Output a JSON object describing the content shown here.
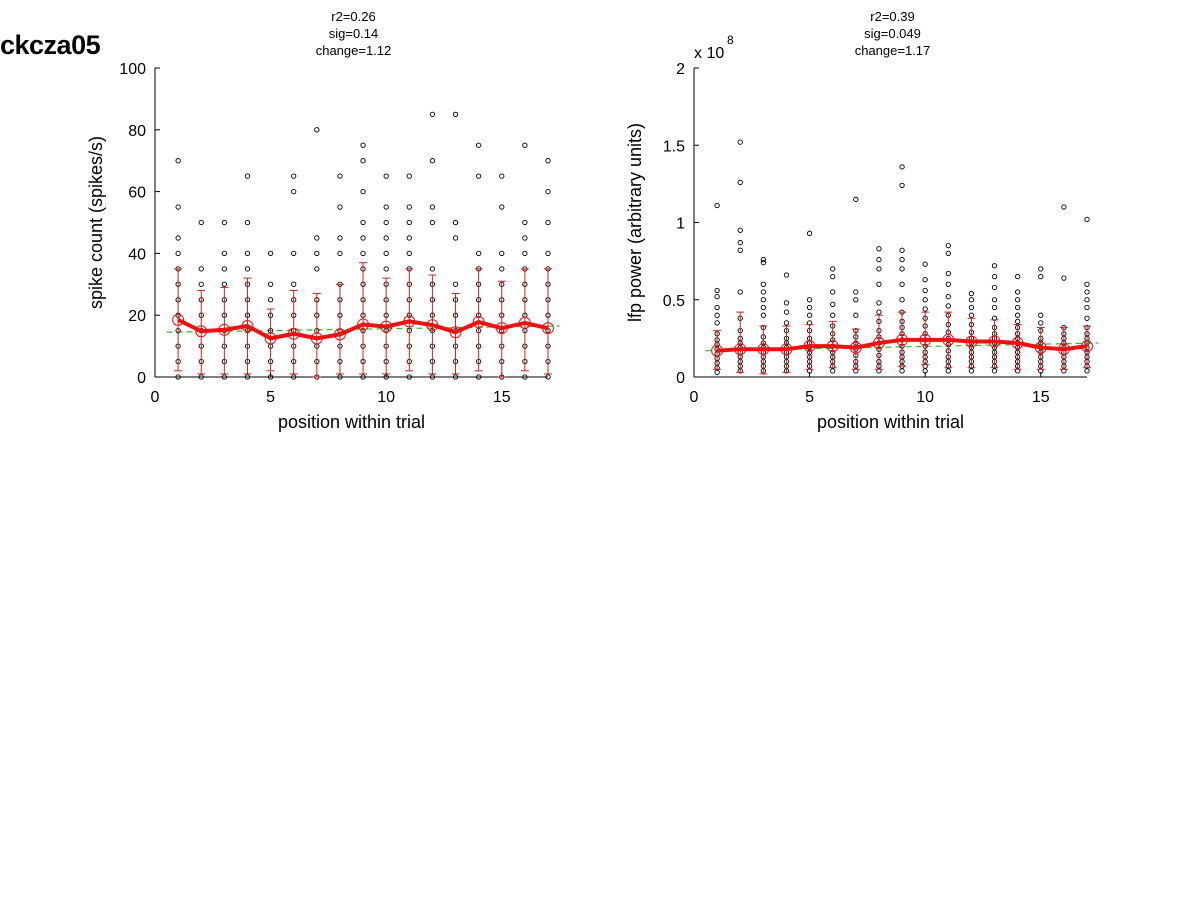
{
  "page_title": "ckcza05",
  "chart_data": [
    {
      "type": "scatter",
      "title_lines": [
        "r2=0.26",
        "sig=0.14",
        "change=1.12"
      ],
      "xlabel": "position within trial",
      "ylabel": "spike count (spikes/s)",
      "xlim": [
        0,
        17
      ],
      "ylim": [
        0,
        100
      ],
      "xticks": [
        0,
        5,
        10,
        15
      ],
      "yticks": [
        0,
        20,
        40,
        60,
        80,
        100
      ],
      "xtick_labels": [
        "0",
        "5",
        "10",
        "15"
      ],
      "ytick_labels": [
        "0",
        "20",
        "40",
        "60",
        "80",
        "100"
      ],
      "exponent_label": "",
      "grid": false,
      "colors": {
        "mean": "#ee1111",
        "points": "#000000",
        "errorbar": "#cc2222",
        "fit": "#33bb33"
      },
      "points": [
        {
          "x": 1,
          "y": [
            0,
            5,
            10,
            15,
            20,
            25,
            30,
            35,
            40,
            45,
            55,
            70
          ]
        },
        {
          "x": 2,
          "y": [
            0,
            5,
            10,
            15,
            20,
            25,
            30,
            35,
            50
          ]
        },
        {
          "x": 3,
          "y": [
            0,
            5,
            10,
            15,
            20,
            25,
            30,
            35,
            40,
            50
          ]
        },
        {
          "x": 4,
          "y": [
            0,
            5,
            10,
            15,
            20,
            25,
            30,
            35,
            40,
            50,
            65
          ]
        },
        {
          "x": 5,
          "y": [
            0,
            5,
            10,
            15,
            20,
            25,
            30,
            40
          ]
        },
        {
          "x": 6,
          "y": [
            0,
            5,
            10,
            15,
            20,
            25,
            30,
            40,
            60,
            65
          ]
        },
        {
          "x": 7,
          "y": [
            0,
            5,
            10,
            15,
            20,
            25,
            35,
            40,
            45,
            80
          ]
        },
        {
          "x": 8,
          "y": [
            0,
            5,
            10,
            15,
            20,
            25,
            30,
            40,
            45,
            55,
            65
          ]
        },
        {
          "x": 9,
          "y": [
            0,
            5,
            10,
            15,
            20,
            25,
            30,
            35,
            40,
            45,
            50,
            60,
            70,
            75
          ]
        },
        {
          "x": 10,
          "y": [
            0,
            5,
            10,
            15,
            20,
            25,
            30,
            35,
            40,
            45,
            50,
            55,
            65
          ]
        },
        {
          "x": 11,
          "y": [
            0,
            5,
            10,
            15,
            20,
            25,
            30,
            35,
            40,
            45,
            50,
            55,
            65
          ]
        },
        {
          "x": 12,
          "y": [
            0,
            5,
            10,
            15,
            20,
            25,
            30,
            35,
            50,
            55,
            70,
            85
          ]
        },
        {
          "x": 13,
          "y": [
            0,
            5,
            10,
            15,
            20,
            25,
            30,
            45,
            50,
            85
          ]
        },
        {
          "x": 14,
          "y": [
            0,
            5,
            10,
            15,
            20,
            25,
            30,
            35,
            40,
            65,
            75
          ]
        },
        {
          "x": 15,
          "y": [
            0,
            5,
            10,
            15,
            20,
            25,
            30,
            35,
            40,
            55,
            65
          ]
        },
        {
          "x": 16,
          "y": [
            0,
            5,
            10,
            15,
            20,
            25,
            30,
            35,
            40,
            45,
            50,
            75
          ]
        },
        {
          "x": 17,
          "y": [
            0,
            5,
            10,
            15,
            20,
            25,
            30,
            35,
            40,
            50,
            60,
            70
          ]
        }
      ],
      "mean": {
        "x": [
          1,
          2,
          3,
          4,
          5,
          6,
          7,
          8,
          9,
          10,
          11,
          12,
          13,
          14,
          15,
          16,
          17
        ],
        "y": [
          18.5,
          14.8,
          15.3,
          16.5,
          12.5,
          14.0,
          12.5,
          13.8,
          17.0,
          16.3,
          18.0,
          16.8,
          14.5,
          17.8,
          15.8,
          17.5,
          15.8
        ]
      },
      "errorbars": {
        "lower": [
          2,
          1,
          1,
          1,
          2,
          1,
          0,
          1,
          1,
          1,
          2,
          1,
          1,
          2,
          0,
          2,
          1
        ],
        "upper": [
          35,
          28,
          29,
          32,
          22,
          28,
          27,
          30,
          37,
          32,
          35,
          33,
          27,
          35,
          31,
          35,
          35
        ]
      },
      "fit": {
        "x": [
          0.5,
          17.5
        ],
        "y": [
          14.5,
          16.5
        ]
      }
    },
    {
      "type": "scatter",
      "title_lines": [
        "r2=0.39",
        "sig=0.049",
        "change=1.17"
      ],
      "xlabel": "position within trial",
      "ylabel": "lfp power (arbitrary units)",
      "xlim": [
        0,
        17
      ],
      "ylim": [
        0,
        2
      ],
      "xticks": [
        0,
        5,
        10,
        15
      ],
      "yticks": [
        0,
        0.5,
        1,
        1.5,
        2
      ],
      "xtick_labels": [
        "0",
        "5",
        "10",
        "15"
      ],
      "ytick_labels": [
        "0",
        "0.5",
        "1",
        "1.5",
        "2"
      ],
      "exponent_label": "x 10",
      "exponent_power": "8",
      "grid": false,
      "colors": {
        "mean": "#ee1111",
        "points": "#000000",
        "errorbar": "#cc2222",
        "fit": "#33bb33"
      },
      "points": [
        {
          "x": 1,
          "y": [
            0.03,
            0.06,
            0.09,
            0.12,
            0.15,
            0.18,
            0.21,
            0.24,
            0.28,
            0.35,
            0.4,
            0.45,
            0.52,
            0.56,
            1.11
          ]
        },
        {
          "x": 2,
          "y": [
            0.04,
            0.07,
            0.1,
            0.13,
            0.16,
            0.19,
            0.22,
            0.25,
            0.3,
            0.38,
            0.55,
            0.82,
            0.87,
            0.95,
            1.26,
            1.52
          ]
        },
        {
          "x": 3,
          "y": [
            0.04,
            0.07,
            0.1,
            0.13,
            0.16,
            0.19,
            0.22,
            0.26,
            0.32,
            0.4,
            0.45,
            0.5,
            0.55,
            0.6,
            0.74,
            0.76
          ]
        },
        {
          "x": 4,
          "y": [
            0.04,
            0.07,
            0.1,
            0.13,
            0.16,
            0.19,
            0.22,
            0.25,
            0.3,
            0.35,
            0.42,
            0.48,
            0.66
          ]
        },
        {
          "x": 5,
          "y": [
            0.04,
            0.07,
            0.1,
            0.13,
            0.16,
            0.19,
            0.22,
            0.25,
            0.3,
            0.35,
            0.4,
            0.45,
            0.5,
            0.93
          ]
        },
        {
          "x": 6,
          "y": [
            0.04,
            0.07,
            0.1,
            0.13,
            0.16,
            0.2,
            0.24,
            0.28,
            0.33,
            0.4,
            0.47,
            0.55,
            0.65,
            0.7
          ]
        },
        {
          "x": 7,
          "y": [
            0.04,
            0.07,
            0.1,
            0.14,
            0.18,
            0.22,
            0.26,
            0.3,
            0.4,
            0.5,
            0.55,
            1.15
          ]
        },
        {
          "x": 8,
          "y": [
            0.04,
            0.07,
            0.1,
            0.14,
            0.18,
            0.22,
            0.26,
            0.3,
            0.36,
            0.42,
            0.48,
            0.6,
            0.7,
            0.76,
            0.83
          ]
        },
        {
          "x": 9,
          "y": [
            0.04,
            0.07,
            0.1,
            0.13,
            0.16,
            0.2,
            0.24,
            0.28,
            0.32,
            0.36,
            0.42,
            0.5,
            0.6,
            0.7,
            0.76,
            0.82,
            1.24,
            1.36
          ]
        },
        {
          "x": 10,
          "y": [
            0.04,
            0.07,
            0.1,
            0.13,
            0.16,
            0.2,
            0.24,
            0.28,
            0.33,
            0.38,
            0.44,
            0.5,
            0.56,
            0.63,
            0.73
          ]
        },
        {
          "x": 11,
          "y": [
            0.04,
            0.07,
            0.1,
            0.13,
            0.17,
            0.21,
            0.25,
            0.29,
            0.34,
            0.4,
            0.46,
            0.52,
            0.6,
            0.67,
            0.8,
            0.85
          ]
        },
        {
          "x": 12,
          "y": [
            0.04,
            0.07,
            0.1,
            0.13,
            0.16,
            0.19,
            0.22,
            0.25,
            0.29,
            0.34,
            0.4,
            0.45,
            0.5,
            0.54
          ]
        },
        {
          "x": 13,
          "y": [
            0.04,
            0.07,
            0.1,
            0.13,
            0.16,
            0.19,
            0.22,
            0.25,
            0.28,
            0.32,
            0.38,
            0.45,
            0.5,
            0.58,
            0.65,
            0.72
          ]
        },
        {
          "x": 14,
          "y": [
            0.04,
            0.07,
            0.1,
            0.13,
            0.16,
            0.19,
            0.22,
            0.25,
            0.28,
            0.32,
            0.36,
            0.4,
            0.45,
            0.5,
            0.55,
            0.65
          ]
        },
        {
          "x": 15,
          "y": [
            0.04,
            0.07,
            0.1,
            0.13,
            0.16,
            0.19,
            0.22,
            0.25,
            0.3,
            0.35,
            0.4,
            0.65,
            0.7
          ]
        },
        {
          "x": 16,
          "y": [
            0.04,
            0.07,
            0.1,
            0.13,
            0.16,
            0.19,
            0.22,
            0.25,
            0.28,
            0.32,
            0.64,
            1.1
          ]
        },
        {
          "x": 17,
          "y": [
            0.04,
            0.07,
            0.1,
            0.13,
            0.16,
            0.19,
            0.22,
            0.25,
            0.28,
            0.32,
            0.38,
            0.45,
            0.5,
            0.55,
            0.6,
            1.02
          ]
        }
      ],
      "mean": {
        "x": [
          1,
          2,
          3,
          4,
          5,
          6,
          7,
          8,
          9,
          10,
          11,
          12,
          13,
          14,
          15,
          16,
          17
        ],
        "y": [
          0.17,
          0.18,
          0.18,
          0.18,
          0.2,
          0.2,
          0.19,
          0.22,
          0.24,
          0.24,
          0.24,
          0.23,
          0.23,
          0.22,
          0.19,
          0.18,
          0.2
        ]
      },
      "errorbars": {
        "lower": [
          0.05,
          0.03,
          0.02,
          0.03,
          0.05,
          0.06,
          0.05,
          0.05,
          0.07,
          0.08,
          0.06,
          0.06,
          0.06,
          0.05,
          0.05,
          0.05,
          0.06
        ],
        "upper": [
          0.3,
          0.42,
          0.33,
          0.33,
          0.34,
          0.36,
          0.31,
          0.4,
          0.42,
          0.42,
          0.42,
          0.38,
          0.37,
          0.34,
          0.32,
          0.32,
          0.33
        ]
      },
      "fit": {
        "x": [
          0.5,
          17.5
        ],
        "y": [
          0.17,
          0.22
        ]
      }
    }
  ]
}
